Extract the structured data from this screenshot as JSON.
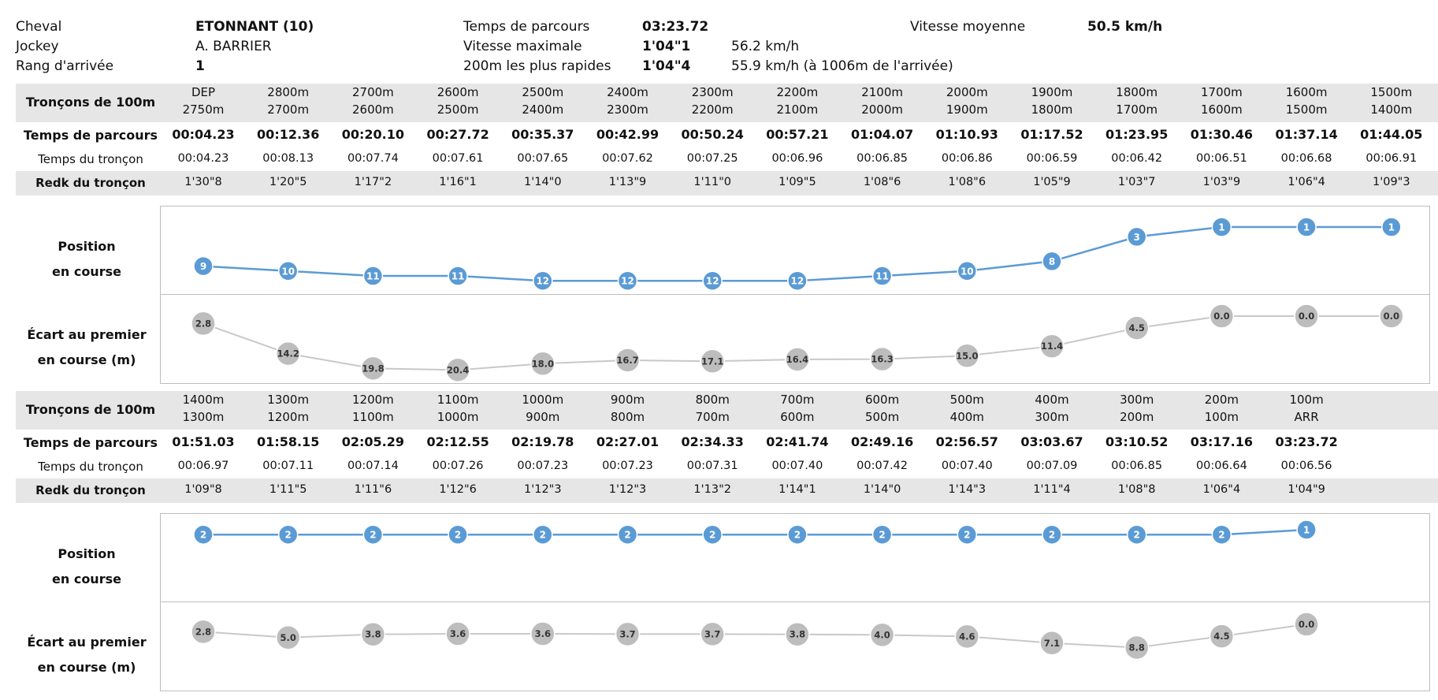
{
  "info": {
    "cheval_label": "Cheval",
    "cheval_value": "ETONNANT (10)",
    "jockey_label": "Jockey",
    "jockey_value": "A. BARRIER",
    "rang_label": "Rang d'arrivée",
    "rang_value": "1",
    "temps_label": "Temps de parcours",
    "temps_value": "03:23.72",
    "vmax_label": "Vitesse maximale",
    "vmax_time": "1'04\"1",
    "vmax_speed": "56.2 km/h",
    "fast_label": "200m les plus rapides",
    "fast_time": "1'04\"4",
    "fast_speed": "55.9 km/h (à 1006m de l'arrivée)",
    "vmoy_label": "Vitesse moyenne",
    "vmoy_value": "50.5 km/h"
  },
  "labels": {
    "troncons": "Tronçons de 100m",
    "temps_parcours": "Temps de parcours",
    "temps_troncon": "Temps du tronçon",
    "redk": "Redk du tronçon",
    "position_1": "Position",
    "position_2": "en course",
    "ecart_1": "Écart au premier",
    "ecart_2": "en course (m)"
  },
  "chart_data": [
    {
      "type": "table",
      "troncons_from": [
        "DEP",
        "2800m",
        "2700m",
        "2600m",
        "2500m",
        "2400m",
        "2300m",
        "2200m",
        "2100m",
        "2000m",
        "1900m",
        "1800m",
        "1700m",
        "1600m",
        "1500m"
      ],
      "troncons_to": [
        "2750m",
        "2700m",
        "2600m",
        "2500m",
        "2400m",
        "2300m",
        "2200m",
        "2100m",
        "2000m",
        "1900m",
        "1800m",
        "1700m",
        "1600m",
        "1500m",
        "1400m"
      ],
      "temps_parcours": [
        "00:04.23",
        "00:12.36",
        "00:20.10",
        "00:27.72",
        "00:35.37",
        "00:42.99",
        "00:50.24",
        "00:57.21",
        "01:04.07",
        "01:10.93",
        "01:17.52",
        "01:23.95",
        "01:30.46",
        "01:37.14",
        "01:44.05"
      ],
      "temps_troncon": [
        "00:04.23",
        "00:08.13",
        "00:07.74",
        "00:07.61",
        "00:07.65",
        "00:07.62",
        "00:07.25",
        "00:06.96",
        "00:06.85",
        "00:06.86",
        "00:06.59",
        "00:06.42",
        "00:06.51",
        "00:06.68",
        "00:06.91"
      ],
      "redk": [
        "1'30\"8",
        "1'20\"5",
        "1'17\"2",
        "1'16\"1",
        "1'14\"0",
        "1'13\"9",
        "1'11\"0",
        "1'09\"5",
        "1'08\"6",
        "1'08\"6",
        "1'05\"9",
        "1'03\"7",
        "1'03\"9",
        "1'06\"4",
        "1'09\"3"
      ]
    },
    {
      "type": "line",
      "series": [
        {
          "values": [
            9,
            10,
            11,
            11,
            12,
            12,
            12,
            12,
            11,
            10,
            8,
            3,
            1,
            1,
            1
          ]
        }
      ],
      "color": "#5b9bd5"
    },
    {
      "type": "line",
      "series": [
        {
          "values": [
            "2.8",
            "14.2",
            "19.8",
            "20.4",
            "18.0",
            "16.7",
            "17.1",
            "16.4",
            "16.3",
            "15.0",
            "11.4",
            "4.5",
            "0.0",
            "0.0",
            "0.0"
          ]
        }
      ],
      "color": "#bdbdbd"
    },
    {
      "type": "table",
      "troncons_from": [
        "1400m",
        "1300m",
        "1200m",
        "1100m",
        "1000m",
        "900m",
        "800m",
        "700m",
        "600m",
        "500m",
        "400m",
        "300m",
        "200m",
        "100m"
      ],
      "troncons_to": [
        "1300m",
        "1200m",
        "1100m",
        "1000m",
        "900m",
        "800m",
        "700m",
        "600m",
        "500m",
        "400m",
        "300m",
        "200m",
        "100m",
        "ARR"
      ],
      "temps_parcours": [
        "01:51.03",
        "01:58.15",
        "02:05.29",
        "02:12.55",
        "02:19.78",
        "02:27.01",
        "02:34.33",
        "02:41.74",
        "02:49.16",
        "02:56.57",
        "03:03.67",
        "03:10.52",
        "03:17.16",
        "03:23.72"
      ],
      "temps_troncon": [
        "00:06.97",
        "00:07.11",
        "00:07.14",
        "00:07.26",
        "00:07.23",
        "00:07.23",
        "00:07.31",
        "00:07.40",
        "00:07.42",
        "00:07.40",
        "00:07.09",
        "00:06.85",
        "00:06.64",
        "00:06.56"
      ],
      "redk": [
        "1'09\"8",
        "1'11\"5",
        "1'11\"6",
        "1'12\"6",
        "1'12\"3",
        "1'12\"3",
        "1'13\"2",
        "1'14\"1",
        "1'14\"0",
        "1'14\"3",
        "1'11\"4",
        "1'08\"8",
        "1'06\"4",
        "1'04\"9"
      ]
    },
    {
      "type": "line",
      "series": [
        {
          "values": [
            2,
            2,
            2,
            2,
            2,
            2,
            2,
            2,
            2,
            2,
            2,
            2,
            2,
            1
          ]
        }
      ],
      "color": "#5b9bd5"
    },
    {
      "type": "line",
      "series": [
        {
          "values": [
            "2.8",
            "5.0",
            "3.8",
            "3.6",
            "3.6",
            "3.7",
            "3.7",
            "3.8",
            "4.0",
            "4.6",
            "7.1",
            "8.8",
            "4.5",
            "0.0"
          ]
        }
      ],
      "color": "#bdbdbd"
    }
  ]
}
